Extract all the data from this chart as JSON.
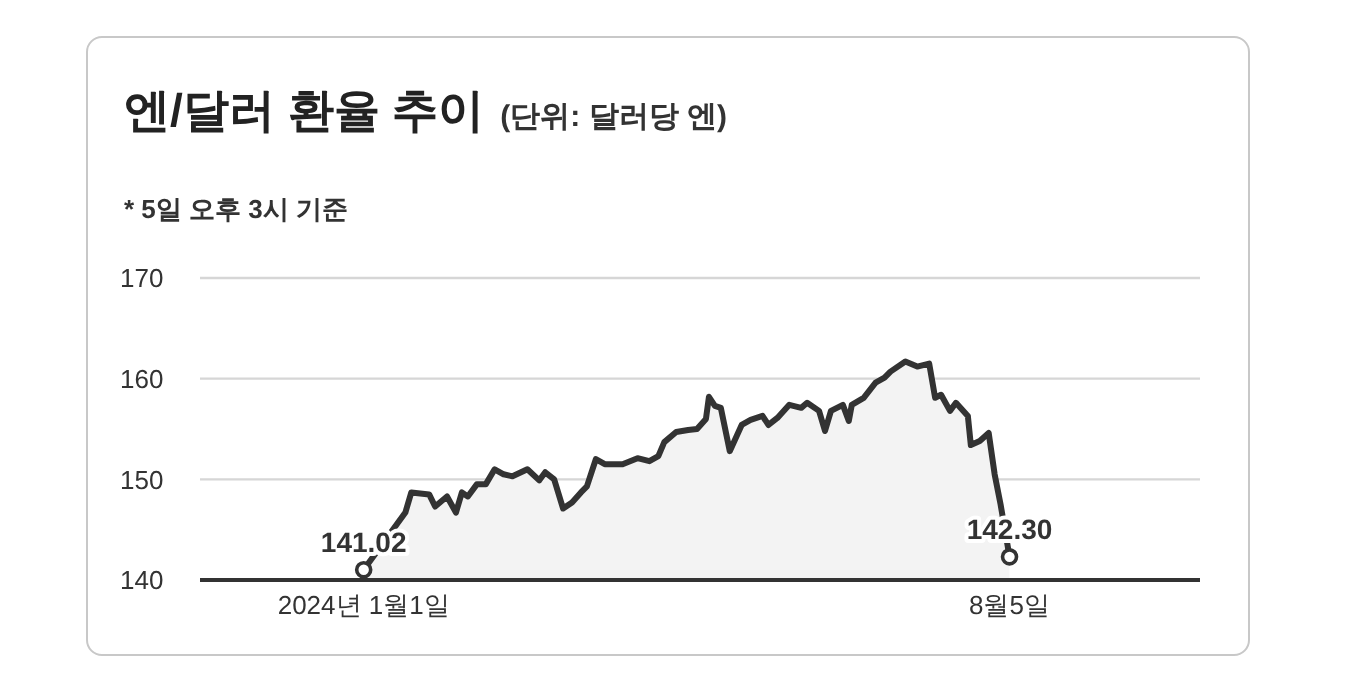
{
  "chart_data": {
    "type": "area",
    "title": "엔/달러 환율 추이",
    "subtitle": "(단위: 달러당 엔)",
    "annotations": [
      "* 5일 오후 3시 기준"
    ],
    "x": [
      "2024-01-01",
      "2024-01-15",
      "2024-01-17",
      "2024-01-23",
      "2024-01-25",
      "2024-01-29",
      "2024-02-01",
      "2024-02-03",
      "2024-02-05",
      "2024-02-08",
      "2024-02-11",
      "2024-02-14",
      "2024-02-17",
      "2024-02-20",
      "2024-02-25",
      "2024-02-29",
      "2024-03-02",
      "2024-03-05",
      "2024-03-08",
      "2024-03-11",
      "2024-03-14",
      "2024-03-16",
      "2024-03-19",
      "2024-03-22",
      "2024-03-28",
      "2024-04-02",
      "2024-04-06",
      "2024-04-09",
      "2024-04-11",
      "2024-04-15",
      "2024-04-19",
      "2024-04-22",
      "2024-04-25",
      "2024-04-26",
      "2024-04-28",
      "2024-04-30",
      "2024-05-03",
      "2024-05-07",
      "2024-05-10",
      "2024-05-14",
      "2024-05-16",
      "2024-05-19",
      "2024-05-23",
      "2024-05-27",
      "2024-05-29",
      "2024-06-02",
      "2024-06-04",
      "2024-06-06",
      "2024-06-10",
      "2024-06-12",
      "2024-06-13",
      "2024-06-17",
      "2024-06-21",
      "2024-06-24",
      "2024-06-26",
      "2024-07-01",
      "2024-07-05",
      "2024-07-09",
      "2024-07-11",
      "2024-07-13",
      "2024-07-16",
      "2024-07-18",
      "2024-07-22",
      "2024-07-23",
      "2024-07-26",
      "2024-07-29",
      "2024-07-31",
      "2024-08-02",
      "2024-08-05"
    ],
    "series": [
      {
        "color": "#333333",
        "values": [
          141.02,
          146.7,
          148.7,
          148.5,
          147.3,
          148.3,
          146.7,
          148.7,
          148.3,
          149.5,
          149.5,
          151,
          150.5,
          150.3,
          151,
          149.9,
          150.7,
          150,
          147.1,
          147.7,
          148.7,
          149.3,
          152,
          151.5,
          151.5,
          152.1,
          151.8,
          152.3,
          153.7,
          154.7,
          154.9,
          155,
          156,
          158.2,
          157.3,
          157.1,
          152.8,
          155.4,
          155.9,
          156.3,
          155.4,
          156.1,
          157.4,
          157.1,
          157.6,
          156.8,
          154.8,
          156.8,
          157.4,
          155.8,
          157.4,
          158.1,
          159.6,
          160.1,
          160.7,
          161.7,
          161.2,
          161.5,
          158.1,
          158.4,
          156.8,
          157.6,
          156.3,
          153.4,
          153.8,
          154.6,
          150.5,
          147.5,
          142.3
        ],
        "value_labels": [
          "141.02",
          null,
          null,
          null,
          null,
          null,
          null,
          null,
          null,
          null,
          null,
          null,
          null,
          null,
          null,
          null,
          null,
          null,
          null,
          null,
          null,
          null,
          null,
          null,
          null,
          null,
          null,
          null,
          null,
          null,
          null,
          null,
          null,
          null,
          null,
          null,
          null,
          null,
          null,
          null,
          null,
          null,
          null,
          null,
          null,
          null,
          null,
          null,
          null,
          null,
          null,
          null,
          null,
          null,
          null,
          null,
          null,
          null,
          null,
          null,
          null,
          null,
          null,
          null,
          null,
          null,
          null,
          null,
          "142.30"
        ]
      }
    ],
    "xlim": [
      "2023-11-07",
      "2024-10-08"
    ],
    "xticks": [
      {
        "value": "2024-01-01",
        "label": "2024년 1월1일"
      },
      {
        "value": "2024-08-05",
        "label": "8월5일"
      }
    ],
    "ylim": [
      140,
      170
    ],
    "yticks": [
      140,
      150,
      160,
      170
    ],
    "grid": "y"
  }
}
